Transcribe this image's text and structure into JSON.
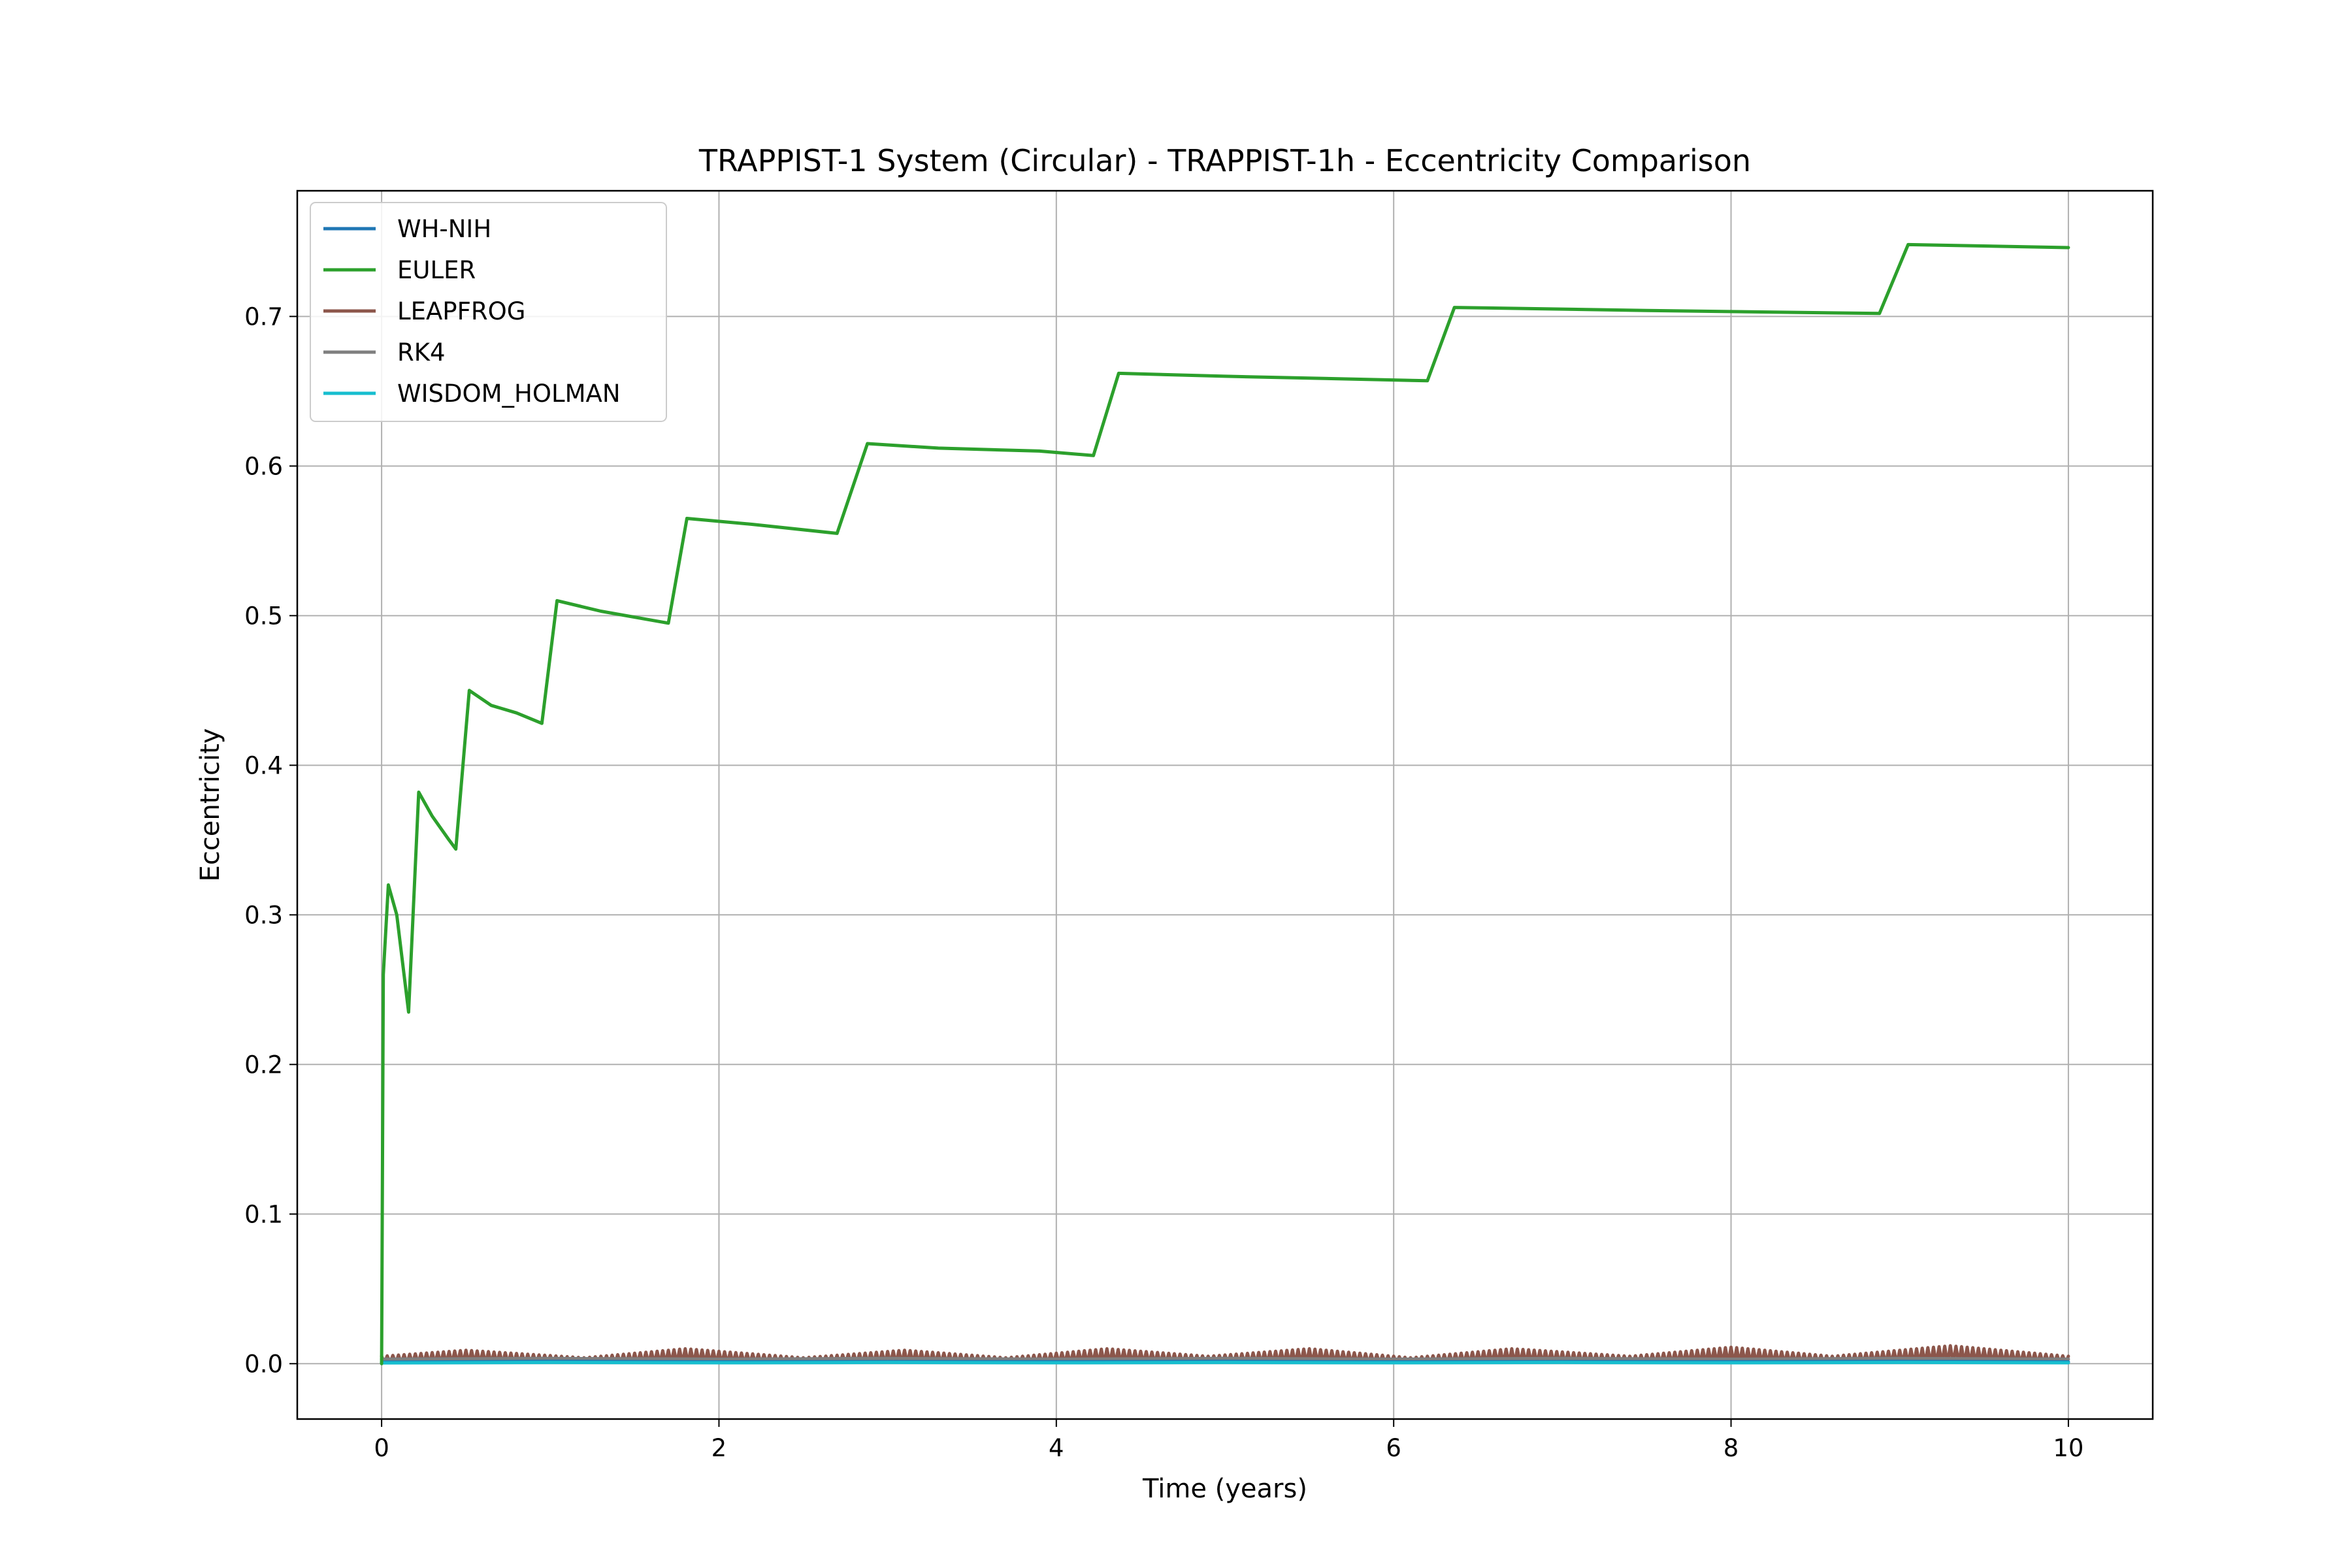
{
  "chart_data": {
    "type": "line",
    "title": "TRAPPIST-1 System (Circular) - TRAPPIST-1h - Eccentricity Comparison",
    "xlabel": "Time (years)",
    "ylabel": "Eccentricity",
    "xlim": [
      -0.5,
      10.5
    ],
    "ylim": [
      -0.037,
      0.784
    ],
    "x_ticks": [
      0,
      2,
      4,
      6,
      8,
      10
    ],
    "x_tick_labels": [
      "0",
      "2",
      "4",
      "6",
      "8",
      "10"
    ],
    "y_ticks": [
      0.0,
      0.1,
      0.2,
      0.3,
      0.4,
      0.5,
      0.6,
      0.7
    ],
    "y_tick_labels": [
      "0.0",
      "0.1",
      "0.2",
      "0.3",
      "0.4",
      "0.5",
      "0.6",
      "0.7"
    ],
    "grid": true,
    "legend_position": "top-left",
    "series": [
      {
        "name": "WH-NIH",
        "color": "#1f77b4",
        "x": [
          0,
          1,
          2,
          3,
          4,
          5,
          6,
          7,
          8,
          9,
          10
        ],
        "y": [
          0.001,
          0.0015,
          0.0012,
          0.0014,
          0.0013,
          0.0015,
          0.0012,
          0.0014,
          0.0013,
          0.0015,
          0.0012
        ]
      },
      {
        "name": "EULER",
        "color": "#2ca02c",
        "x": [
          0,
          0.01,
          0.04,
          0.09,
          0.16,
          0.22,
          0.3,
          0.4,
          0.44,
          0.52,
          0.65,
          0.8,
          0.95,
          1.04,
          1.3,
          1.7,
          1.81,
          2.2,
          2.7,
          2.88,
          3.3,
          3.9,
          4.22,
          4.37,
          5.0,
          6.2,
          6.36,
          7.5,
          8.88,
          9.05,
          10.0
        ],
        "y": [
          0.0,
          0.26,
          0.32,
          0.3,
          0.235,
          0.382,
          0.366,
          0.35,
          0.344,
          0.45,
          0.44,
          0.435,
          0.428,
          0.51,
          0.503,
          0.495,
          0.565,
          0.561,
          0.555,
          0.615,
          0.612,
          0.61,
          0.607,
          0.662,
          0.66,
          0.657,
          0.706,
          0.704,
          0.702,
          0.748,
          0.746
        ]
      },
      {
        "name": "LEAPFROG",
        "color": "#8c564b",
        "x": [
          0,
          0.5,
          1.2,
          1.8,
          2.5,
          3.1,
          3.7,
          4.3,
          4.9,
          5.5,
          6.1,
          6.7,
          7.4,
          8.0,
          8.6,
          9.3,
          10.0
        ],
        "y": [
          0.005,
          0.009,
          0.004,
          0.01,
          0.004,
          0.009,
          0.004,
          0.01,
          0.005,
          0.01,
          0.004,
          0.01,
          0.005,
          0.011,
          0.005,
          0.012,
          0.005
        ]
      },
      {
        "name": "RK4",
        "color": "#7f7f7f",
        "x": [
          0,
          1,
          2,
          3,
          4,
          5,
          6,
          7,
          8,
          9,
          10
        ],
        "y": [
          0.003,
          0.0035,
          0.003,
          0.0035,
          0.003,
          0.0035,
          0.003,
          0.0035,
          0.003,
          0.0035,
          0.003
        ]
      },
      {
        "name": "WISDOM_HOLMAN",
        "color": "#17becf",
        "x": [
          0,
          1,
          2,
          3,
          4,
          5,
          6,
          7,
          8,
          9,
          10
        ],
        "y": [
          0.0005,
          0.0008,
          0.0006,
          0.0008,
          0.0006,
          0.0008,
          0.0006,
          0.0008,
          0.0006,
          0.0008,
          0.0006
        ]
      }
    ]
  }
}
